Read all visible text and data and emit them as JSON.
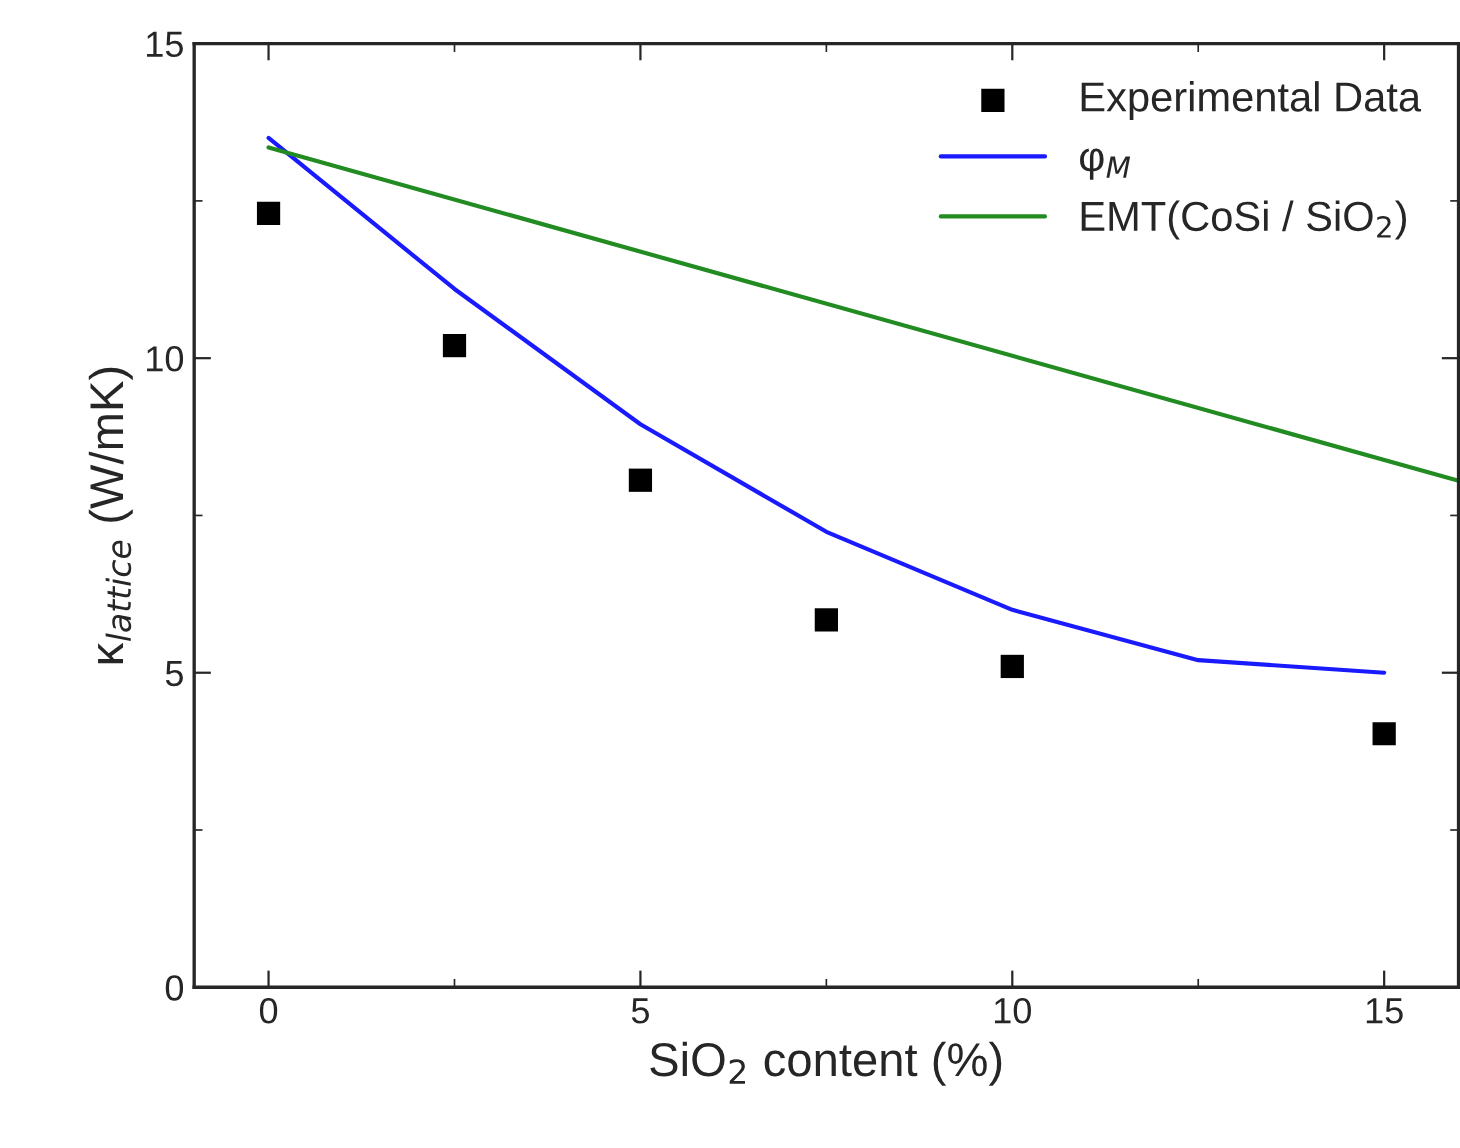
{
  "chart_data": {
    "type": "scatter",
    "xlabel": "SiO$_{2}$ content (%)",
    "ylabel": "κ$_{lattice}$ (W/mK)",
    "xlim": [
      -1,
      16
    ],
    "xticks": [
      0,
      5,
      10,
      15
    ],
    "ylim": [
      0,
      15
    ],
    "yticks": [
      0,
      5,
      10,
      15
    ],
    "grid": false,
    "legend": "top right",
    "series": [
      {
        "name": "Experimental Data",
        "marker": "square",
        "color": "#000000",
        "x": [
          0,
          2.5,
          5,
          7.5,
          10,
          15
        ],
        "values": [
          12.3,
          10.2,
          8.06,
          5.84,
          5.1,
          4.03
        ]
      },
      {
        "name": "φ$_{M}$",
        "type": "line",
        "marker": "none",
        "line_style": "solid",
        "color": "#1a1aff",
        "x": [
          0,
          2.5,
          5,
          7.5,
          10,
          12.5,
          15
        ],
        "values": [
          13.5,
          11.1,
          8.95,
          7.24,
          6.0,
          5.2,
          5.0
        ]
      },
      {
        "name": "EMT(CoSi / SiO$_{2}$)",
        "type": "line",
        "marker": "none",
        "line_style": "solid",
        "color": "#228b22",
        "x": [
          0,
          16
        ],
        "values": [
          13.35,
          8.05
        ]
      }
    ]
  }
}
